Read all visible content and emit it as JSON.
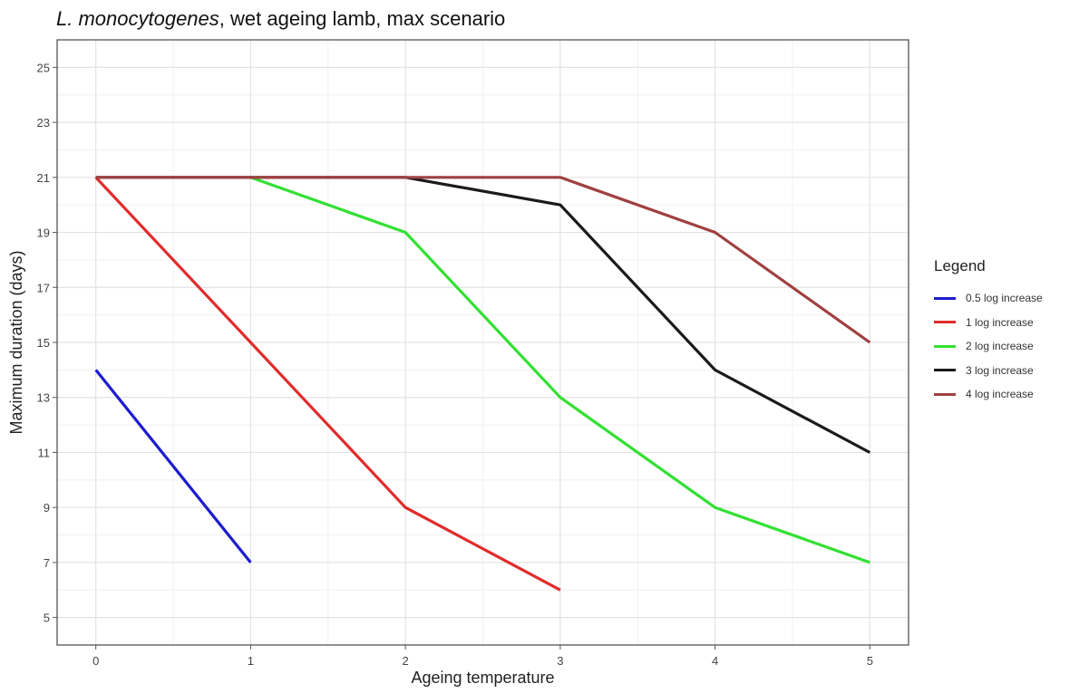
{
  "title": {
    "organism": "L. monocytogenes",
    "rest": ", wet ageing lamb, max scenario"
  },
  "chart_data": {
    "type": "line",
    "xlabel": "Ageing temperature",
    "ylabel": "Maximum duration (days)",
    "xlim": [
      -0.25,
      5.25
    ],
    "ylim": [
      4.0,
      26.0
    ],
    "x_ticks": [
      0,
      1,
      2,
      3,
      4,
      5
    ],
    "y_ticks": [
      5,
      7,
      9,
      11,
      13,
      15,
      17,
      19,
      21,
      23,
      25
    ],
    "grid": true,
    "legend": {
      "title": "Legend",
      "position": "right"
    },
    "series": [
      {
        "name": "0.5 log increase",
        "color": "#1c1ccf",
        "x": [
          0,
          1
        ],
        "y": [
          14,
          7
        ]
      },
      {
        "name": "1 log increase",
        "color": "#e02c2c",
        "x": [
          0,
          1,
          2,
          3
        ],
        "y": [
          21,
          15,
          9,
          6
        ]
      },
      {
        "name": "2 log increase",
        "color": "#33e033",
        "x": [
          1,
          2,
          3,
          4,
          5
        ],
        "y": [
          21,
          19,
          13,
          9,
          7
        ]
      },
      {
        "name": "3 log increase",
        "color": "#1a1a1a",
        "x": [
          0,
          1,
          2,
          3,
          4,
          5
        ],
        "y": [
          21,
          21,
          21,
          20,
          14,
          11
        ]
      },
      {
        "name": "4 log increase",
        "color": "#a04040",
        "x": [
          0,
          1,
          2,
          3,
          4,
          5
        ],
        "y": [
          21,
          21,
          21,
          21,
          19,
          15
        ]
      }
    ]
  }
}
